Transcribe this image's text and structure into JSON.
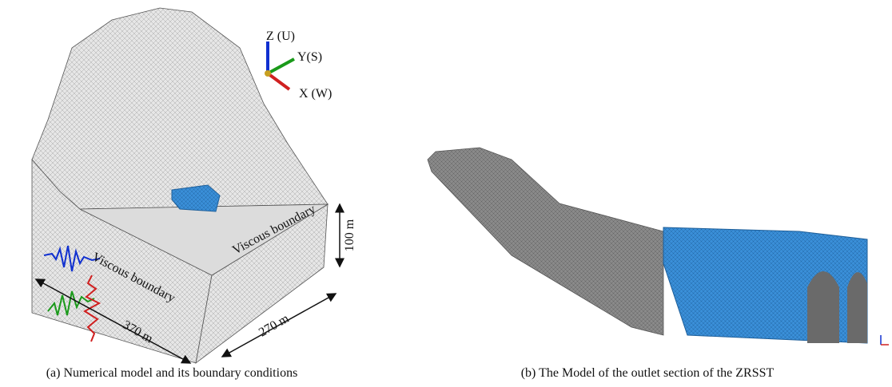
{
  "panels": [
    {
      "caption": "(a) Numerical model and its boundary conditions",
      "axes": {
        "z": "Z (U)",
        "y": "Y(S)",
        "x": "X (W)"
      },
      "boundaries": [
        "Viscous boundary",
        "Viscous boundary"
      ],
      "dimensions": {
        "height": "100 m",
        "length": "370 m",
        "width": "270 m"
      }
    },
    {
      "caption": "(b) The Model of the outlet section of the ZRSST"
    }
  ]
}
